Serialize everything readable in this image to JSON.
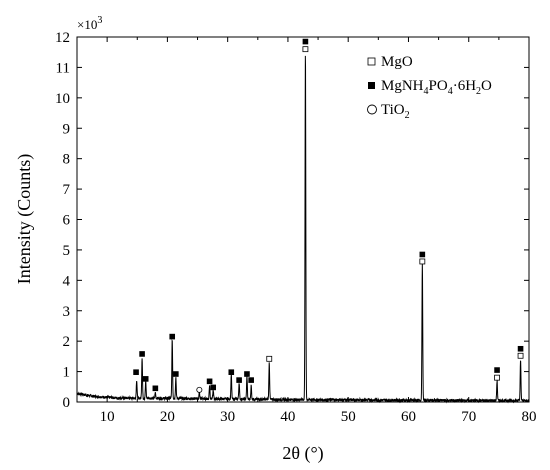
{
  "chart_data": {
    "type": "line",
    "xlabel": "2θ (°)",
    "ylabel": "Intensity (Counts)",
    "y_multiplier": "×10",
    "y_multiplier_exp": "3",
    "xlim": [
      5,
      80
    ],
    "ylim": [
      0,
      12
    ],
    "x_ticks": [
      10,
      20,
      30,
      40,
      50,
      60,
      70,
      80
    ],
    "y_ticks": [
      0,
      1,
      2,
      3,
      4,
      5,
      6,
      7,
      8,
      9,
      10,
      11,
      12
    ],
    "grid": false,
    "legend_position": "top-right",
    "legend": [
      {
        "marker": "open-square",
        "label": "MgO"
      },
      {
        "marker": "filled-square",
        "label": "MgNH4PO4·6H2O",
        "label_parts": [
          [
            "MgNH",
            ""
          ],
          [
            "4",
            "sub"
          ],
          [
            "PO",
            ""
          ],
          [
            "4",
            "sub"
          ],
          [
            "·6H",
            ""
          ],
          [
            "2",
            "sub"
          ],
          [
            "O",
            ""
          ]
        ]
      },
      {
        "marker": "open-circle",
        "label": "TiO2",
        "label_parts": [
          [
            "TiO",
            ""
          ],
          [
            "2",
            "sub"
          ]
        ]
      }
    ],
    "series": [
      {
        "baseline": [
          [
            5,
            0.28
          ],
          [
            8,
            0.18
          ],
          [
            12,
            0.13
          ],
          [
            20,
            0.12
          ],
          [
            30,
            0.1
          ],
          [
            40,
            0.08
          ],
          [
            50,
            0.07
          ],
          [
            60,
            0.06
          ],
          [
            70,
            0.05
          ],
          [
            80,
            0.05
          ]
        ],
        "peaks": [
          [
            14.9,
            0.6
          ],
          [
            15.8,
            1.35
          ],
          [
            16.4,
            0.55
          ],
          [
            18.0,
            0.18
          ],
          [
            20.8,
            1.95
          ],
          [
            21.4,
            0.7
          ],
          [
            25.3,
            0.2
          ],
          [
            27.0,
            0.45
          ],
          [
            27.6,
            0.28
          ],
          [
            30.6,
            0.8
          ],
          [
            31.9,
            0.55
          ],
          [
            33.2,
            0.75
          ],
          [
            33.9,
            0.45
          ],
          [
            36.9,
            1.22
          ],
          [
            42.9,
            11.45
          ],
          [
            62.3,
            4.5
          ],
          [
            74.7,
            0.65
          ],
          [
            78.6,
            1.32
          ]
        ]
      }
    ],
    "annotations": [
      {
        "marker": "filled-square",
        "x": 14.8,
        "y": 0.98
      },
      {
        "marker": "filled-square",
        "x": 15.8,
        "y": 1.58
      },
      {
        "marker": "filled-square",
        "x": 16.4,
        "y": 0.76
      },
      {
        "marker": "filled-square",
        "x": 18.0,
        "y": 0.45
      },
      {
        "marker": "filled-square",
        "x": 20.8,
        "y": 2.15
      },
      {
        "marker": "filled-square",
        "x": 21.4,
        "y": 0.92
      },
      {
        "marker": "open-circle",
        "x": 25.3,
        "y": 0.4
      },
      {
        "marker": "filled-square",
        "x": 27.0,
        "y": 0.68
      },
      {
        "marker": "filled-square",
        "x": 27.6,
        "y": 0.48
      },
      {
        "marker": "filled-square",
        "x": 30.6,
        "y": 0.98
      },
      {
        "marker": "filled-square",
        "x": 31.9,
        "y": 0.72
      },
      {
        "marker": "filled-square",
        "x": 33.2,
        "y": 0.92
      },
      {
        "marker": "filled-square",
        "x": 33.9,
        "y": 0.72
      },
      {
        "marker": "open-square",
        "x": 36.9,
        "y": 1.42
      },
      {
        "marker": "filled-square",
        "x": 42.9,
        "y": 11.85
      },
      {
        "marker": "open-square",
        "x": 42.9,
        "y": 11.6
      },
      {
        "marker": "filled-square",
        "x": 62.3,
        "y": 4.85
      },
      {
        "marker": "open-square",
        "x": 62.3,
        "y": 4.62
      },
      {
        "marker": "filled-square",
        "x": 74.7,
        "y": 1.05
      },
      {
        "marker": "open-square",
        "x": 74.7,
        "y": 0.8
      },
      {
        "marker": "filled-square",
        "x": 78.6,
        "y": 1.75
      },
      {
        "marker": "open-square",
        "x": 78.6,
        "y": 1.52
      }
    ]
  }
}
